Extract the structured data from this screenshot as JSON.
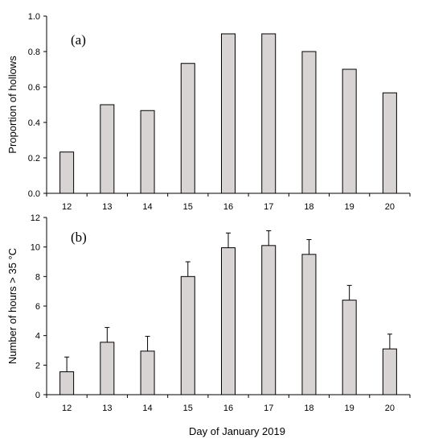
{
  "chart_data": [
    {
      "type": "bar",
      "panel_label": "(a)",
      "categories": [
        "12",
        "13",
        "14",
        "15",
        "16",
        "17",
        "18",
        "19",
        "20"
      ],
      "values": [
        0.233,
        0.5,
        0.467,
        0.733,
        0.9,
        0.9,
        0.8,
        0.7,
        0.567
      ],
      "ylabel": "Proportion of hollows",
      "ylim": [
        0,
        1.0
      ],
      "yticks": [
        "0.0",
        "0.2",
        "0.4",
        "0.6",
        "0.8",
        "1.0"
      ],
      "bar_color": "#d9d4d4"
    },
    {
      "type": "bar",
      "panel_label": "(b)",
      "categories": [
        "12",
        "13",
        "14",
        "15",
        "16",
        "17",
        "18",
        "19",
        "20"
      ],
      "values": [
        1.55,
        3.55,
        2.95,
        8.0,
        9.95,
        10.1,
        9.5,
        6.4,
        3.1
      ],
      "error_upper": [
        1.0,
        1.0,
        1.0,
        1.0,
        1.0,
        1.0,
        1.0,
        1.0,
        1.0
      ],
      "ylabel": "Number of hours > 35 °C",
      "ylim": [
        0,
        12
      ],
      "yticks": [
        "0",
        "2",
        "4",
        "6",
        "8",
        "10",
        "12"
      ],
      "bar_color": "#d9d4d4"
    }
  ],
  "xlabel": "Day of January 2019"
}
